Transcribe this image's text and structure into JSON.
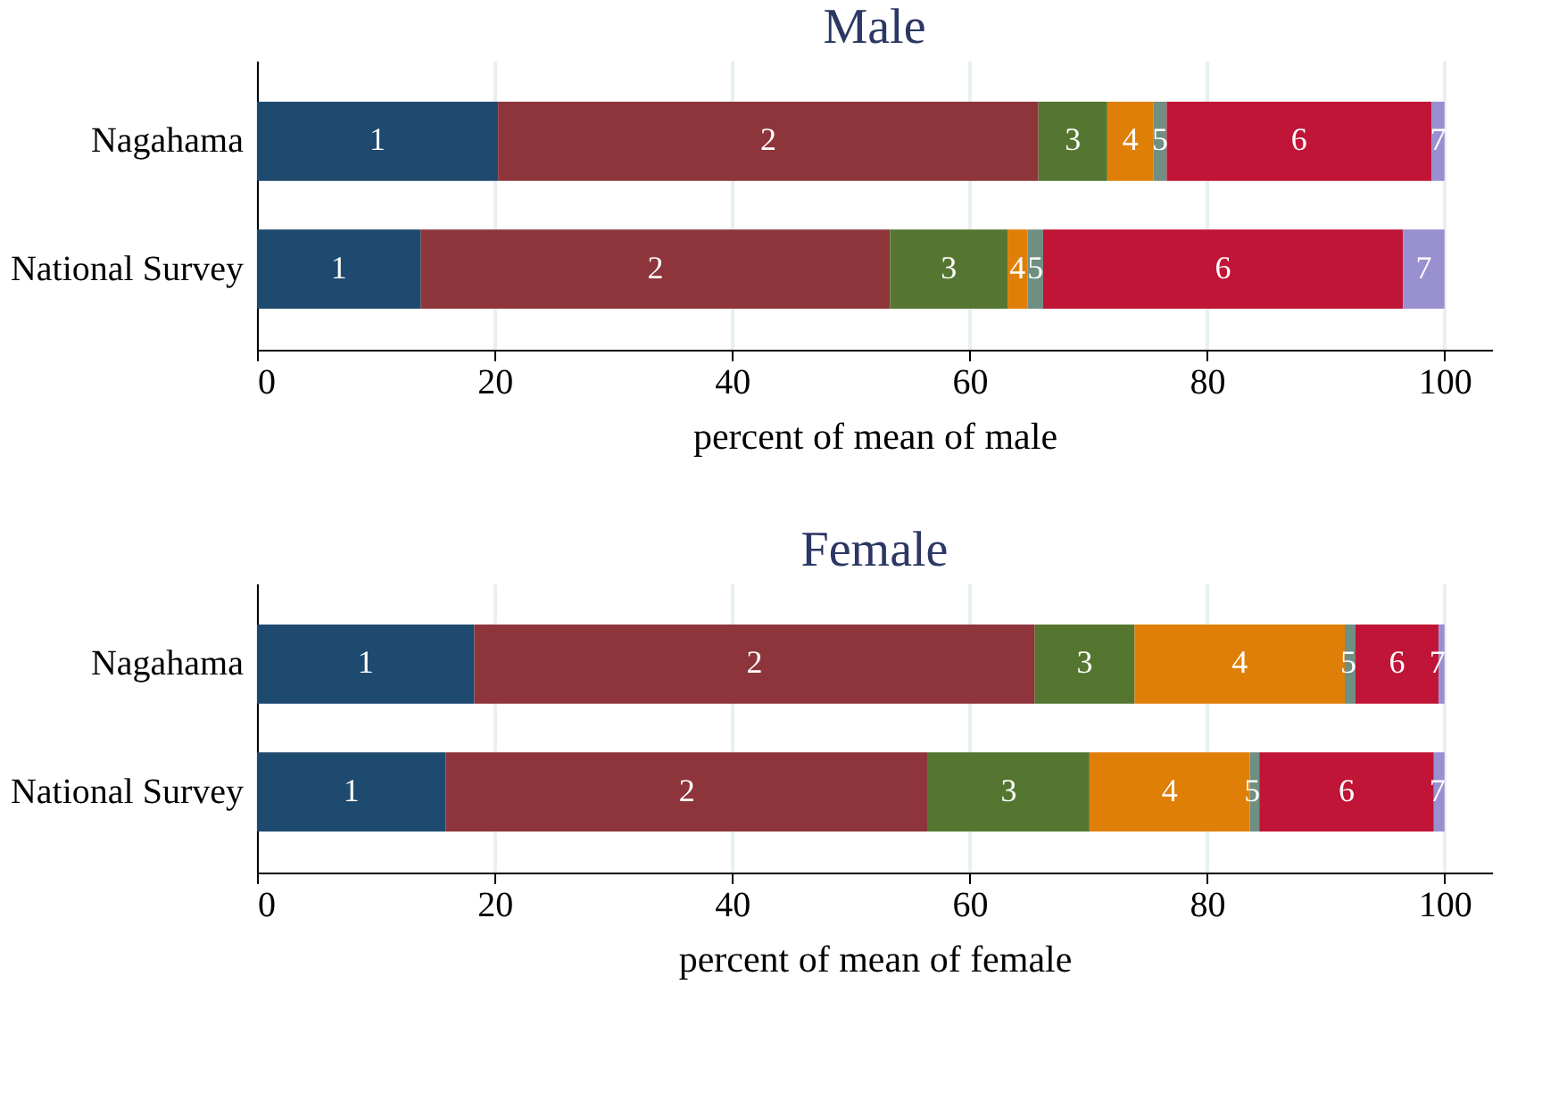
{
  "chart_data": [
    {
      "type": "bar",
      "orientation": "horizontal",
      "stacked": true,
      "title": "Male",
      "xlabel": "percent of mean of male",
      "categories": [
        "Nagahama",
        "National Survey"
      ],
      "xlim": [
        0,
        104
      ],
      "xticks": [
        0,
        20,
        40,
        60,
        80,
        100
      ],
      "grid": "x",
      "series": [
        {
          "name": "1",
          "color": "#1f4a70",
          "values": [
            20.3,
            13.8
          ]
        },
        {
          "name": "2",
          "color": "#8e353b",
          "values": [
            45.5,
            39.5
          ]
        },
        {
          "name": "3",
          "color": "#557630",
          "values": [
            5.8,
            9.9
          ]
        },
        {
          "name": "4",
          "color": "#e07f08",
          "values": [
            3.9,
            1.7
          ]
        },
        {
          "name": "5",
          "color": "#6f8f82",
          "values": [
            1.1,
            1.3
          ]
        },
        {
          "name": "6",
          "color": "#c11537",
          "values": [
            22.3,
            30.3
          ]
        },
        {
          "name": "7",
          "color": "#9990d0",
          "values": [
            1.1,
            3.5
          ]
        }
      ]
    },
    {
      "type": "bar",
      "orientation": "horizontal",
      "stacked": true,
      "title": "Female",
      "xlabel": "percent of mean of female",
      "categories": [
        "Nagahama",
        "National Survey"
      ],
      "xlim": [
        0,
        104
      ],
      "xticks": [
        0,
        20,
        40,
        60,
        80,
        100
      ],
      "grid": "x",
      "series": [
        {
          "name": "1",
          "color": "#1f4a70",
          "values": [
            18.3,
            15.9
          ]
        },
        {
          "name": "2",
          "color": "#8e353b",
          "values": [
            47.2,
            40.6
          ]
        },
        {
          "name": "3",
          "color": "#557630",
          "values": [
            8.4,
            13.6
          ]
        },
        {
          "name": "4",
          "color": "#e07f08",
          "values": [
            17.7,
            13.5
          ]
        },
        {
          "name": "5",
          "color": "#6f8f82",
          "values": [
            0.9,
            0.8
          ]
        },
        {
          "name": "6",
          "color": "#c11537",
          "values": [
            7.0,
            14.7
          ]
        },
        {
          "name": "7",
          "color": "#9990d0",
          "values": [
            0.5,
            0.9
          ]
        }
      ]
    }
  ]
}
